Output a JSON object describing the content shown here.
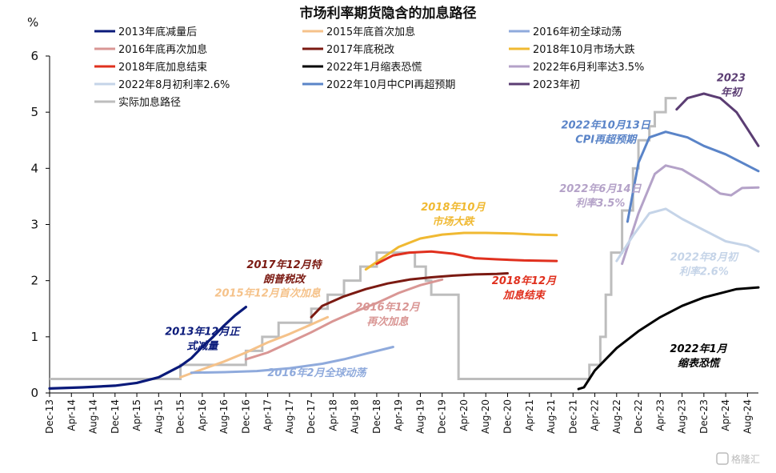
{
  "chart_data": {
    "type": "line",
    "title": "市场利率期货隐含的加息路径",
    "ylabel": "%",
    "ylim": [
      0,
      6
    ],
    "yticks": [
      0,
      1,
      2,
      3,
      4,
      5,
      6
    ],
    "xlim": [
      "2013-12",
      "2024-10"
    ],
    "xticks": [
      {
        "date": "2013-12",
        "label": "Dec-13"
      },
      {
        "date": "2014-04",
        "label": "Apr-14"
      },
      {
        "date": "2014-08",
        "label": "Aug-14"
      },
      {
        "date": "2014-12",
        "label": "Dec-14"
      },
      {
        "date": "2015-04",
        "label": "Apr-15"
      },
      {
        "date": "2015-08",
        "label": "Aug-15"
      },
      {
        "date": "2015-12",
        "label": "Dec-15"
      },
      {
        "date": "2016-04",
        "label": "Apr-16"
      },
      {
        "date": "2016-08",
        "label": "Aug-16"
      },
      {
        "date": "2016-12",
        "label": "Dec-16"
      },
      {
        "date": "2017-04",
        "label": "Apr-17"
      },
      {
        "date": "2017-08",
        "label": "Aug-17"
      },
      {
        "date": "2017-12",
        "label": "Dec-17"
      },
      {
        "date": "2018-04",
        "label": "Apr-18"
      },
      {
        "date": "2018-08",
        "label": "Aug-18"
      },
      {
        "date": "2018-12",
        "label": "Dec-18"
      },
      {
        "date": "2019-04",
        "label": "Apr-19"
      },
      {
        "date": "2019-08",
        "label": "Aug-19"
      },
      {
        "date": "2019-12",
        "label": "Dec-19"
      },
      {
        "date": "2020-04",
        "label": "Apr-20"
      },
      {
        "date": "2020-08",
        "label": "Aug-20"
      },
      {
        "date": "2020-12",
        "label": "Dec-20"
      },
      {
        "date": "2021-04",
        "label": "Apr-21"
      },
      {
        "date": "2021-08",
        "label": "Aug-21"
      },
      {
        "date": "2021-12",
        "label": "Dec-21"
      },
      {
        "date": "2022-04",
        "label": "Apr-22"
      },
      {
        "date": "2022-08",
        "label": "Aug-22"
      },
      {
        "date": "2022-12",
        "label": "Dec-22"
      },
      {
        "date": "2023-04",
        "label": "Apr-23"
      },
      {
        "date": "2023-08",
        "label": "Aug-23"
      },
      {
        "date": "2023-12",
        "label": "Dec-23"
      },
      {
        "date": "2024-04",
        "label": "Apr-24"
      },
      {
        "date": "2024-08",
        "label": "Aug-24"
      }
    ],
    "grid": false,
    "legend_position": "top",
    "series": [
      {
        "name": "2013年底减量后",
        "color": "#0a1a7a",
        "width": 3.2,
        "points": [
          [
            "2013-12",
            0.08
          ],
          [
            "2014-06",
            0.1
          ],
          [
            "2014-12",
            0.13
          ],
          [
            "2015-04",
            0.18
          ],
          [
            "2015-08",
            0.28
          ],
          [
            "2015-12",
            0.48
          ],
          [
            "2016-02",
            0.62
          ],
          [
            "2016-04",
            0.82
          ],
          [
            "2016-06",
            1.0
          ],
          [
            "2016-08",
            1.2
          ],
          [
            "2016-10",
            1.38
          ],
          [
            "2016-12",
            1.53
          ]
        ]
      },
      {
        "name": "2015年底首次加息",
        "color": "#f5c28a",
        "width": 3,
        "points": [
          [
            "2015-12",
            0.28
          ],
          [
            "2016-02",
            0.35
          ],
          [
            "2016-04",
            0.42
          ],
          [
            "2016-08",
            0.56
          ],
          [
            "2016-12",
            0.72
          ],
          [
            "2017-04",
            0.9
          ],
          [
            "2017-08",
            1.05
          ],
          [
            "2017-12",
            1.22
          ],
          [
            "2018-03",
            1.35
          ]
        ]
      },
      {
        "name": "2016年初全球动荡",
        "color": "#8faadc",
        "width": 3,
        "points": [
          [
            "2016-02",
            0.36
          ],
          [
            "2016-08",
            0.37
          ],
          [
            "2017-02",
            0.39
          ],
          [
            "2017-08",
            0.44
          ],
          [
            "2018-02",
            0.52
          ],
          [
            "2018-06",
            0.6
          ],
          [
            "2018-10",
            0.7
          ],
          [
            "2019-03",
            0.82
          ]
        ]
      },
      {
        "name": "2016年底再次加息",
        "color": "#d99694",
        "width": 3,
        "points": [
          [
            "2016-12",
            0.6
          ],
          [
            "2017-04",
            0.72
          ],
          [
            "2017-08",
            0.9
          ],
          [
            "2017-12",
            1.08
          ],
          [
            "2018-04",
            1.28
          ],
          [
            "2018-08",
            1.45
          ],
          [
            "2018-12",
            1.6
          ],
          [
            "2019-04",
            1.78
          ],
          [
            "2019-08",
            1.92
          ],
          [
            "2019-12",
            2.02
          ]
        ]
      },
      {
        "name": "2017年底税改",
        "color": "#7b1a12",
        "width": 3,
        "points": [
          [
            "2017-12",
            1.35
          ],
          [
            "2018-02",
            1.55
          ],
          [
            "2018-06",
            1.72
          ],
          [
            "2018-10",
            1.85
          ],
          [
            "2019-02",
            1.95
          ],
          [
            "2019-06",
            2.02
          ],
          [
            "2019-10",
            2.06
          ],
          [
            "2020-02",
            2.09
          ],
          [
            "2020-06",
            2.11
          ],
          [
            "2020-10",
            2.12
          ],
          [
            "2020-12",
            2.13
          ]
        ]
      },
      {
        "name": "2018年10月市场大跌",
        "color": "#f0b932",
        "width": 3,
        "points": [
          [
            "2018-10",
            2.2
          ],
          [
            "2019-01",
            2.4
          ],
          [
            "2019-04",
            2.6
          ],
          [
            "2019-08",
            2.75
          ],
          [
            "2019-12",
            2.82
          ],
          [
            "2020-04",
            2.85
          ],
          [
            "2020-08",
            2.85
          ],
          [
            "2021-01",
            2.84
          ],
          [
            "2021-05",
            2.82
          ],
          [
            "2021-09",
            2.81
          ]
        ]
      },
      {
        "name": "2018年底加息结束",
        "color": "#e0301e",
        "width": 3,
        "points": [
          [
            "2018-12",
            2.3
          ],
          [
            "2019-03",
            2.45
          ],
          [
            "2019-06",
            2.5
          ],
          [
            "2019-10",
            2.52
          ],
          [
            "2020-02",
            2.48
          ],
          [
            "2020-06",
            2.4
          ],
          [
            "2020-10",
            2.38
          ],
          [
            "2021-03",
            2.36
          ],
          [
            "2021-09",
            2.35
          ]
        ]
      },
      {
        "name": "2022年1月缩表恐慌",
        "color": "#000000",
        "width": 3,
        "points": [
          [
            "2022-01",
            0.07
          ],
          [
            "2022-02",
            0.1
          ],
          [
            "2022-04",
            0.4
          ],
          [
            "2022-08",
            0.8
          ],
          [
            "2022-12",
            1.1
          ],
          [
            "2023-04",
            1.35
          ],
          [
            "2023-08",
            1.55
          ],
          [
            "2023-12",
            1.7
          ],
          [
            "2024-04",
            1.8
          ],
          [
            "2024-06",
            1.85
          ],
          [
            "2024-10",
            1.88
          ]
        ]
      },
      {
        "name": "2022年6月利率达3.5%",
        "color": "#b4a2c8",
        "width": 3,
        "points": [
          [
            "2022-09",
            2.3
          ],
          [
            "2022-12",
            3.2
          ],
          [
            "2023-03",
            3.9
          ],
          [
            "2023-05",
            4.05
          ],
          [
            "2023-08",
            3.98
          ],
          [
            "2023-12",
            3.75
          ],
          [
            "2024-03",
            3.55
          ],
          [
            "2024-05",
            3.52
          ],
          [
            "2024-07",
            3.65
          ],
          [
            "2024-10",
            3.66
          ]
        ]
      },
      {
        "name": "2022年8月初利率2.6%",
        "color": "#c5d4e8",
        "width": 3,
        "points": [
          [
            "2022-08",
            2.35
          ],
          [
            "2022-11",
            2.8
          ],
          [
            "2023-02",
            3.2
          ],
          [
            "2023-05",
            3.28
          ],
          [
            "2023-08",
            3.1
          ],
          [
            "2023-12",
            2.9
          ],
          [
            "2024-04",
            2.7
          ],
          [
            "2024-08",
            2.62
          ],
          [
            "2024-10",
            2.52
          ]
        ]
      },
      {
        "name": "2022年10月中CPI再超预期",
        "color": "#5a84c8",
        "width": 3,
        "points": [
          [
            "2022-10",
            3.05
          ],
          [
            "2022-12",
            4.1
          ],
          [
            "2023-02",
            4.55
          ],
          [
            "2023-05",
            4.65
          ],
          [
            "2023-09",
            4.55
          ],
          [
            "2023-12",
            4.4
          ],
          [
            "2024-04",
            4.25
          ],
          [
            "2024-08",
            4.05
          ],
          [
            "2024-10",
            3.95
          ]
        ]
      },
      {
        "name": "2023年初",
        "color": "#5b3d73",
        "width": 3,
        "points": [
          [
            "2023-07",
            5.05
          ],
          [
            "2023-09",
            5.25
          ],
          [
            "2023-12",
            5.33
          ],
          [
            "2024-03",
            5.25
          ],
          [
            "2024-06",
            5.0
          ],
          [
            "2024-08",
            4.7
          ],
          [
            "2024-10",
            4.4
          ]
        ]
      }
    ],
    "actual_path": {
      "name": "实际加息路径",
      "color": "#bdbdbd",
      "width": 3,
      "steps": [
        [
          "2013-12",
          0.25
        ],
        [
          "2015-12",
          0.5
        ],
        [
          "2016-12",
          0.75
        ],
        [
          "2017-03",
          1.0
        ],
        [
          "2017-06",
          1.25
        ],
        [
          "2017-12",
          1.5
        ],
        [
          "2018-03",
          1.75
        ],
        [
          "2018-06",
          2.0
        ],
        [
          "2018-09",
          2.25
        ],
        [
          "2018-12",
          2.5
        ],
        [
          "2019-07",
          2.25
        ],
        [
          "2019-09",
          2.0
        ],
        [
          "2019-10",
          1.75
        ],
        [
          "2020-03",
          0.25
        ],
        [
          "2022-03",
          0.5
        ],
        [
          "2022-05",
          1.0
        ],
        [
          "2022-06",
          1.75
        ],
        [
          "2022-07",
          2.5
        ],
        [
          "2022-09",
          3.25
        ],
        [
          "2022-11",
          4.0
        ],
        [
          "2022-12",
          4.5
        ],
        [
          "2023-02",
          4.75
        ],
        [
          "2023-03",
          5.0
        ],
        [
          "2023-05",
          5.25
        ],
        [
          "2023-07",
          5.25
        ]
      ]
    },
    "annotations": [
      {
        "lines": [
          "2013年12月正",
          "式减量"
        ],
        "color": "#0a1a7a",
        "at": [
          "2016-04",
          1.03
        ]
      },
      {
        "lines": [
          "2015年12月首次加息"
        ],
        "color": "#f5c28a",
        "at": [
          "2017-04",
          1.72
        ]
      },
      {
        "lines": [
          "2016年2月全球动荡"
        ],
        "color": "#8faadc",
        "at": [
          "2018-01",
          0.3
        ]
      },
      {
        "lines": [
          "2016年12月",
          "再次加息"
        ],
        "color": "#d99694",
        "at": [
          "2019-02",
          1.47
        ]
      },
      {
        "lines": [
          "2017年12月特",
          "朗普税改"
        ],
        "color": "#7b1a12",
        "at": [
          "2017-07",
          2.22
        ]
      },
      {
        "lines": [
          "2018年10月",
          "市场大跌"
        ],
        "color": "#f0b932",
        "at": [
          "2020-02",
          3.25
        ]
      },
      {
        "lines": [
          "2018年12月",
          "加息结束"
        ],
        "color": "#e0301e",
        "at": [
          "2021-03",
          1.94
        ]
      },
      {
        "lines": [
          "2022年1月",
          "缩表恐慌"
        ],
        "color": "#000000",
        "at": [
          "2023-11",
          0.73
        ]
      },
      {
        "lines": [
          "2022年6月14日",
          "利率3.5%"
        ],
        "color": "#b4a2c8",
        "at": [
          "2022-05",
          3.58
        ]
      },
      {
        "lines": [
          "2022年8月初",
          "利率2.6%"
        ],
        "color": "#c5d4e8",
        "at": [
          "2023-12",
          2.36
        ]
      },
      {
        "lines": [
          "2022年10月13日",
          "CPI再超预期"
        ],
        "color": "#5a84c8",
        "at": [
          "2022-06",
          4.71
        ]
      },
      {
        "lines": [
          "2023",
          "年初"
        ],
        "color": "#5b3d73",
        "at": [
          "2024-05",
          5.55
        ]
      }
    ]
  },
  "watermark": "格隆汇"
}
